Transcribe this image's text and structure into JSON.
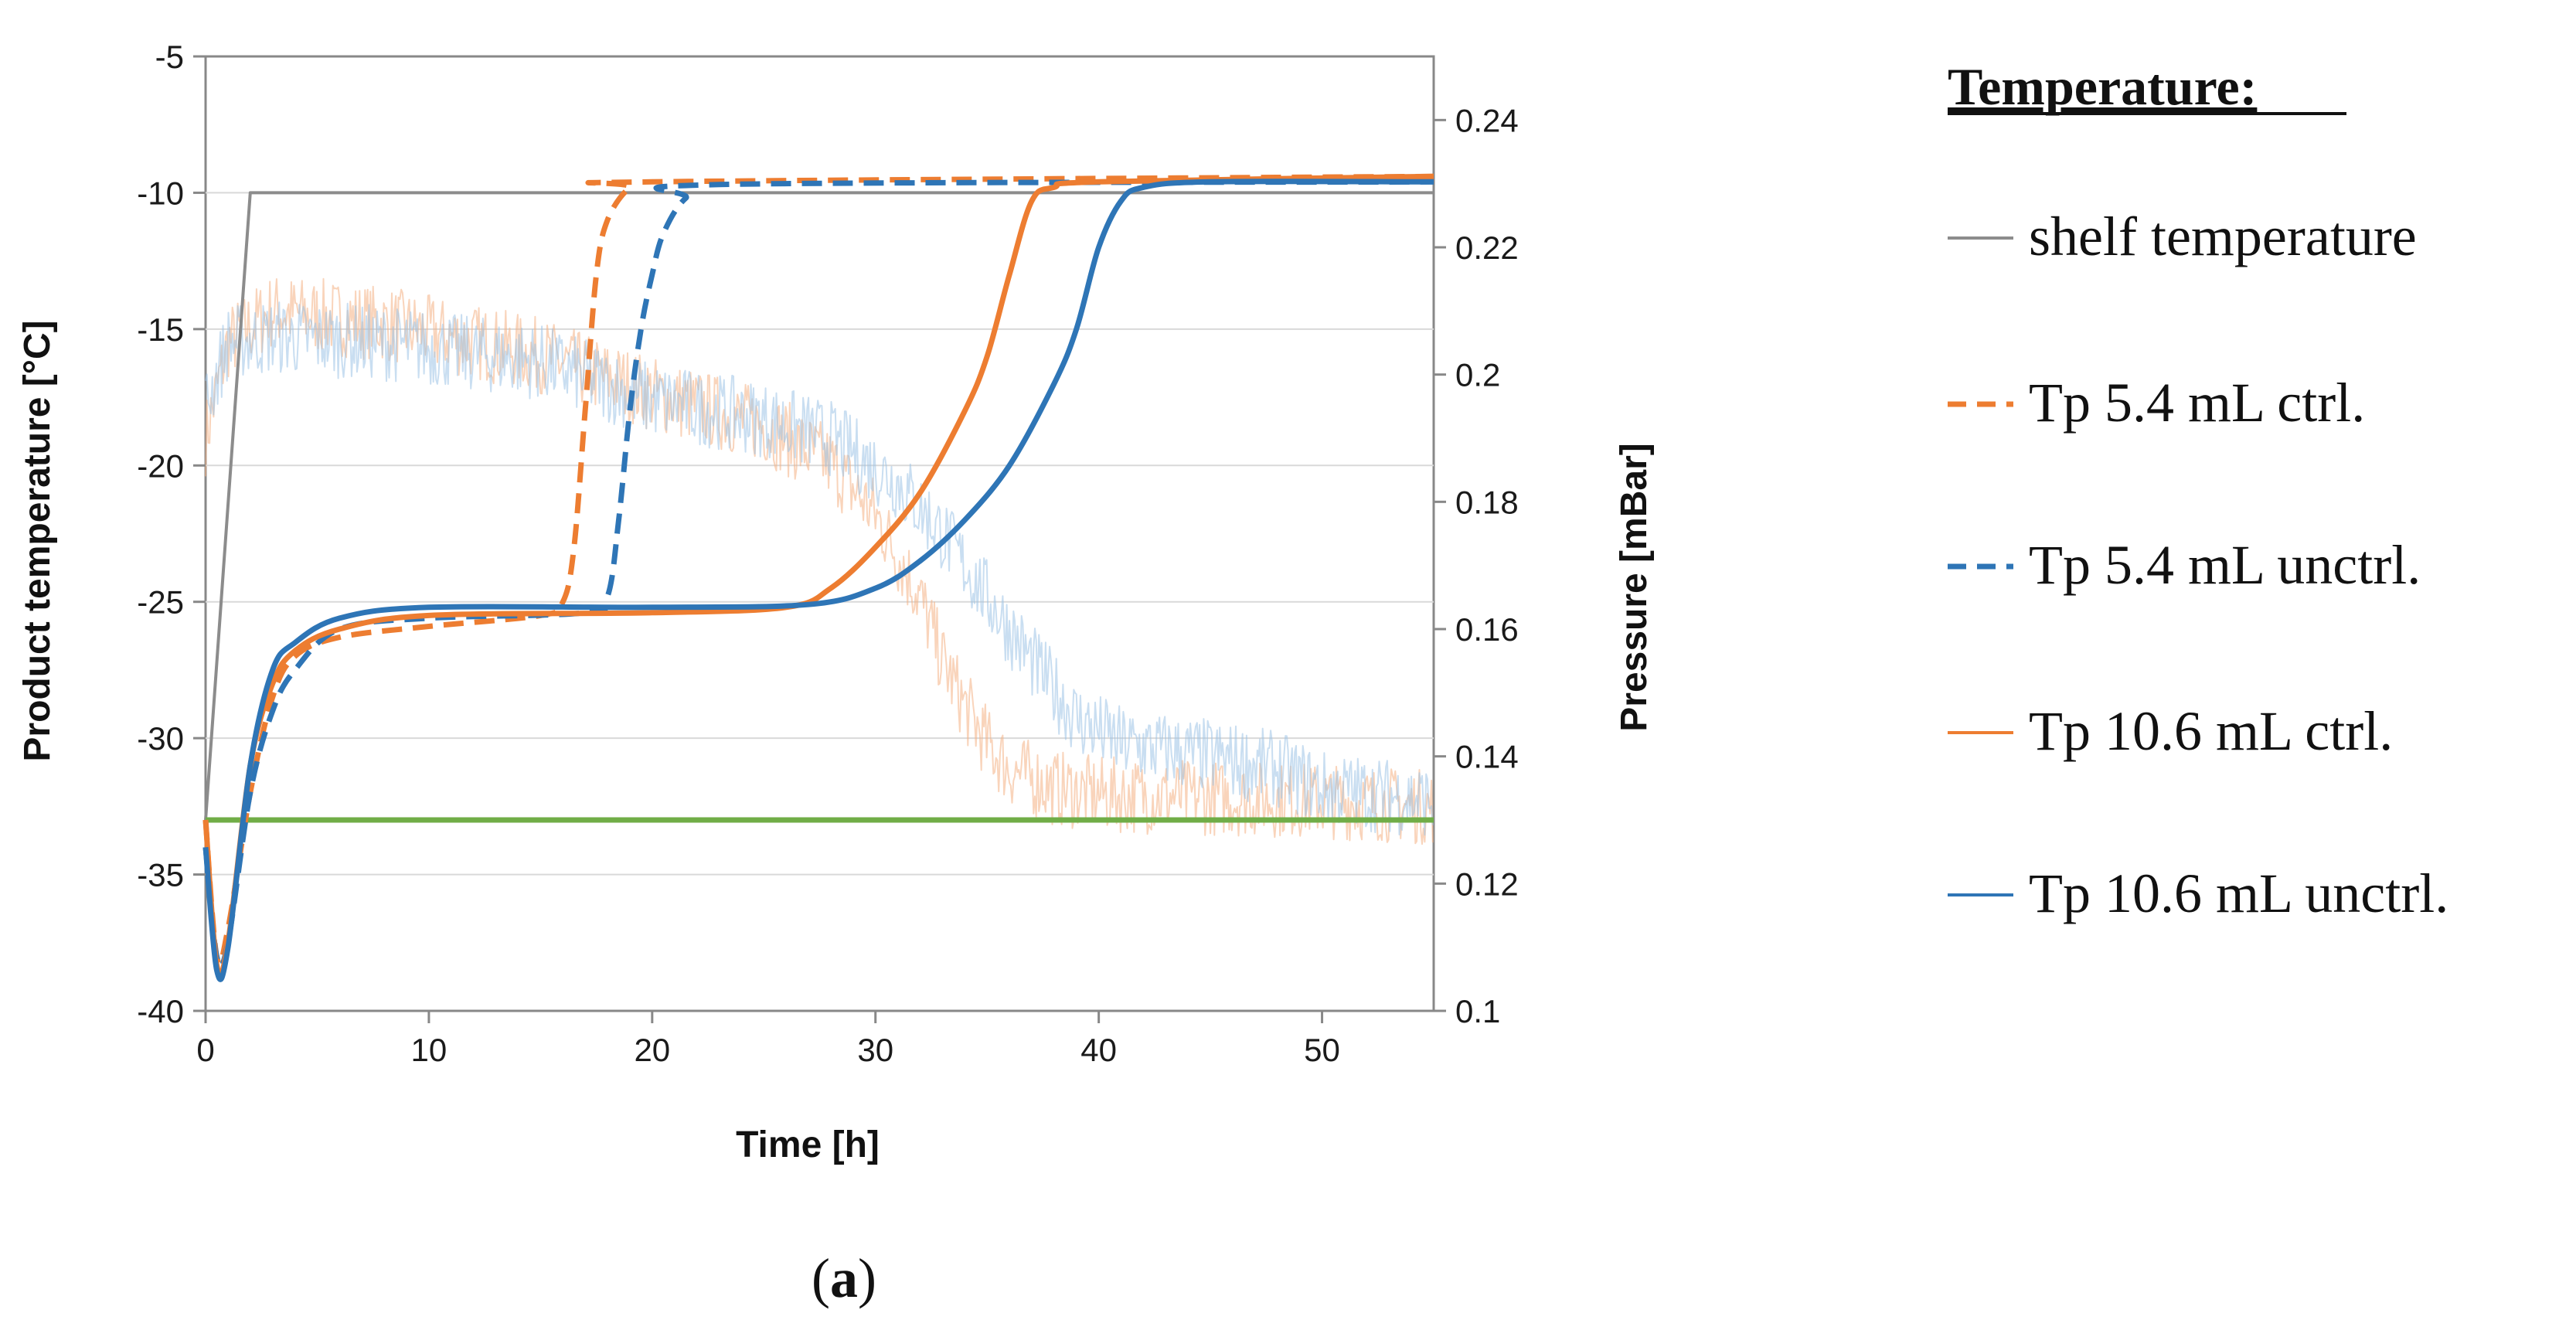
{
  "chart_data": {
    "type": "line",
    "caption": {
      "open": "(",
      "letter": "a",
      "close": ")"
    },
    "xlabel": "Time [h]",
    "ylabel": "Product temperature [°C]",
    "y2label": "Pressure [mBar]",
    "xlim": [
      0,
      55
    ],
    "ylim": [
      -40,
      -5
    ],
    "y2lim": [
      0.1,
      0.25
    ],
    "x_ticks": [
      "0",
      "10",
      "20",
      "30",
      "40",
      "50"
    ],
    "y_ticks": [
      "-5",
      "-10",
      "-15",
      "-20",
      "-25",
      "-30",
      "-35",
      "-40"
    ],
    "y2_ticks": [
      "0.24",
      "0.22",
      "0.2",
      "0.18",
      "0.16",
      "0.14",
      "0.12",
      "0.1"
    ],
    "legend": {
      "title": "Temperature:",
      "items": [
        {
          "key": "shelf",
          "label": "shelf temperature"
        },
        {
          "key": "tp54ctrl",
          "label": "Tp 5.4 mL ctrl."
        },
        {
          "key": "tp54unctrl",
          "label": "Tp 5.4 mL unctrl."
        },
        {
          "key": "tp106ctrl",
          "label": "Tp 10.6 mL ctrl."
        },
        {
          "key": "tp106unctrl",
          "label": "Tp 10.6 mL unctrl."
        }
      ]
    },
    "series": [
      {
        "key": "shelf",
        "name": "shelf temperature",
        "color": "#8c8c8c",
        "dash": "solid",
        "axis": "left",
        "points": [
          [
            0,
            -33
          ],
          [
            2,
            -10
          ],
          [
            55,
            -10
          ]
        ]
      },
      {
        "key": "tp54ctrl",
        "name": "Tp 5.4 mL ctrl.",
        "color": "#ed7d31",
        "dash": "dashed",
        "axis": "left",
        "points": [
          [
            0,
            -33
          ],
          [
            0.5,
            -38
          ],
          [
            1,
            -37
          ],
          [
            2,
            -32
          ],
          [
            3,
            -28.5
          ],
          [
            4,
            -27
          ],
          [
            6,
            -26.3
          ],
          [
            10,
            -25.9
          ],
          [
            15,
            -25.5
          ],
          [
            16,
            -25
          ],
          [
            16.5,
            -23
          ],
          [
            17,
            -18
          ],
          [
            17.5,
            -13
          ],
          [
            18,
            -11
          ],
          [
            19,
            -9.8
          ],
          [
            20,
            -9.6
          ],
          [
            55,
            -9.4
          ]
        ]
      },
      {
        "key": "tp54unctrl",
        "name": "Tp 5.4 mL unctrl.",
        "color": "#2e75b6",
        "dash": "dashed",
        "axis": "left",
        "points": [
          [
            0,
            -34
          ],
          [
            0.5,
            -38
          ],
          [
            1,
            -37.5
          ],
          [
            2,
            -32
          ],
          [
            3,
            -29
          ],
          [
            4,
            -27.5
          ],
          [
            6,
            -26
          ],
          [
            10,
            -25.6
          ],
          [
            17,
            -25.4
          ],
          [
            18,
            -24.8
          ],
          [
            18.5,
            -22
          ],
          [
            19,
            -18
          ],
          [
            19.5,
            -15
          ],
          [
            20,
            -13
          ],
          [
            20.5,
            -11.5
          ],
          [
            21.5,
            -10.2
          ],
          [
            23,
            -9.7
          ],
          [
            55,
            -9.6
          ]
        ]
      },
      {
        "key": "tp106ctrl",
        "name": "Tp 10.6 mL ctrl.",
        "color": "#ed7d31",
        "dash": "solid",
        "axis": "left",
        "points": [
          [
            0,
            -33
          ],
          [
            0.5,
            -38.3
          ],
          [
            1,
            -37.5
          ],
          [
            2,
            -31
          ],
          [
            3,
            -28
          ],
          [
            4,
            -26.8
          ],
          [
            6,
            -26
          ],
          [
            10,
            -25.5
          ],
          [
            20,
            -25.4
          ],
          [
            26,
            -25.2
          ],
          [
            28,
            -24.5
          ],
          [
            30,
            -23
          ],
          [
            32,
            -21
          ],
          [
            34,
            -18
          ],
          [
            35,
            -16
          ],
          [
            36,
            -13
          ],
          [
            37,
            -10.3
          ],
          [
            38,
            -9.8
          ],
          [
            40,
            -9.6
          ],
          [
            55,
            -9.4
          ]
        ]
      },
      {
        "key": "tp106unctrl",
        "name": "Tp 10.6 mL unctrl.",
        "color": "#2e75b6",
        "dash": "solid",
        "axis": "left",
        "points": [
          [
            0,
            -34
          ],
          [
            0.5,
            -38.5
          ],
          [
            1,
            -37.7
          ],
          [
            2,
            -31
          ],
          [
            3,
            -27.5
          ],
          [
            4,
            -26.5
          ],
          [
            6,
            -25.6
          ],
          [
            10,
            -25.2
          ],
          [
            20,
            -25.2
          ],
          [
            27,
            -25.1
          ],
          [
            30,
            -24.5
          ],
          [
            32,
            -23.5
          ],
          [
            34,
            -22
          ],
          [
            36,
            -20
          ],
          [
            38,
            -17
          ],
          [
            39,
            -15
          ],
          [
            40,
            -12
          ],
          [
            41,
            -10.3
          ],
          [
            42,
            -9.8
          ],
          [
            45,
            -9.6
          ],
          [
            55,
            -9.6
          ]
        ]
      },
      {
        "key": "pressure_ctrl",
        "name": "Pressure ctrl.",
        "color": "#f4b183",
        "dash": "solid",
        "axis": "right",
        "noisy": true,
        "opacity": 0.55,
        "points": [
          [
            0,
            0.19
          ],
          [
            1,
            0.205
          ],
          [
            3,
            0.21
          ],
          [
            8,
            0.208
          ],
          [
            15,
            0.203
          ],
          [
            20,
            0.197
          ],
          [
            25,
            0.192
          ],
          [
            28,
            0.186
          ],
          [
            30,
            0.178
          ],
          [
            32,
            0.165
          ],
          [
            33,
            0.155
          ],
          [
            34,
            0.148
          ],
          [
            35,
            0.142
          ],
          [
            36,
            0.138
          ],
          [
            38,
            0.135
          ],
          [
            40,
            0.134
          ],
          [
            50,
            0.133
          ],
          [
            55,
            0.132
          ]
        ]
      },
      {
        "key": "pressure_unctrl",
        "name": "Pressure unctrl.",
        "color": "#9dc3e6",
        "dash": "solid",
        "axis": "right",
        "noisy": true,
        "opacity": 0.55,
        "points": [
          [
            0,
            0.195
          ],
          [
            1,
            0.205
          ],
          [
            3,
            0.206
          ],
          [
            8,
            0.205
          ],
          [
            15,
            0.202
          ],
          [
            20,
            0.196
          ],
          [
            25,
            0.193
          ],
          [
            28,
            0.19
          ],
          [
            31,
            0.183
          ],
          [
            33,
            0.175
          ],
          [
            35,
            0.165
          ],
          [
            37,
            0.155
          ],
          [
            39,
            0.146
          ],
          [
            41,
            0.142
          ],
          [
            45,
            0.14
          ],
          [
            48,
            0.138
          ],
          [
            50,
            0.135
          ],
          [
            55,
            0.133
          ]
        ]
      },
      {
        "key": "reference",
        "name": "reference line",
        "color": "#70ad47",
        "dash": "solid",
        "axis": "left",
        "points": [
          [
            0,
            -33
          ],
          [
            55,
            -33
          ]
        ]
      }
    ]
  }
}
